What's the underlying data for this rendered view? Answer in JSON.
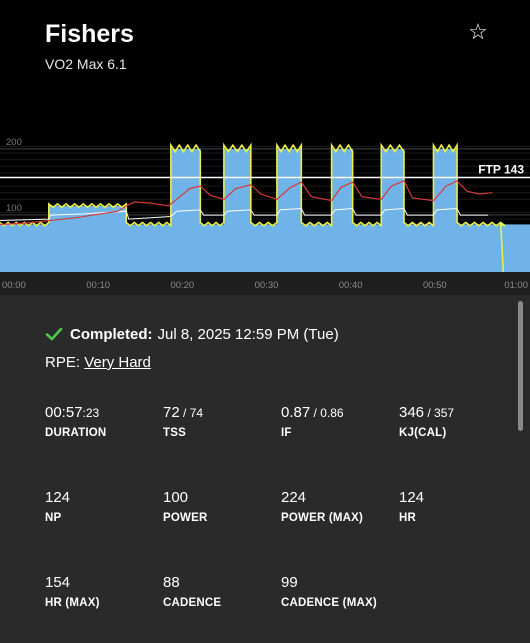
{
  "workout": {
    "title": "Fishers",
    "subtitle": "VO2 Max 6.1",
    "favorite_icon": "star-outline-icon"
  },
  "chart_data": {
    "type": "area",
    "y_ticks": [
      "200",
      "100"
    ],
    "x_ticks": [
      "00:00",
      "00:10",
      "00:20",
      "00:30",
      "00:40",
      "00:50",
      "01:00"
    ],
    "ftp_label": "FTP 143",
    "ftp_value": 143,
    "duration_minutes": 60,
    "ylim": [
      0,
      230
    ],
    "grid": true,
    "colors": {
      "target_power": "#6fb3e8",
      "actual_power": "#e8f04a",
      "heart_rate": "#d83a3a",
      "cadence": "#ffffff"
    },
    "target_power_segments": [
      {
        "start": 0,
        "end": 5.8,
        "watts": 72
      },
      {
        "start": 5.8,
        "end": 15,
        "watts": 100
      },
      {
        "start": 15,
        "end": 20.3,
        "watts": 72
      },
      {
        "start": 20.3,
        "end": 23.8,
        "watts": 186
      },
      {
        "start": 23.8,
        "end": 26.6,
        "watts": 72
      },
      {
        "start": 26.6,
        "end": 29.8,
        "watts": 186
      },
      {
        "start": 29.8,
        "end": 32.9,
        "watts": 72
      },
      {
        "start": 32.9,
        "end": 35.8,
        "watts": 186
      },
      {
        "start": 35.8,
        "end": 39.4,
        "watts": 72
      },
      {
        "start": 39.4,
        "end": 41.9,
        "watts": 186
      },
      {
        "start": 41.9,
        "end": 45.3,
        "watts": 72
      },
      {
        "start": 45.3,
        "end": 48.0,
        "watts": 186
      },
      {
        "start": 48.0,
        "end": 51.5,
        "watts": 72
      },
      {
        "start": 51.5,
        "end": 54.3,
        "watts": 186
      },
      {
        "start": 54.3,
        "end": 60,
        "watts": 72
      }
    ],
    "heart_rate_series": [
      [
        0,
        72
      ],
      [
        3,
        74
      ],
      [
        6,
        78
      ],
      [
        9,
        82
      ],
      [
        12,
        88
      ],
      [
        14,
        92
      ],
      [
        15,
        100
      ],
      [
        16,
        106
      ],
      [
        18,
        104
      ],
      [
        20,
        100
      ],
      [
        21,
        110
      ],
      [
        22.5,
        126
      ],
      [
        23.8,
        130
      ],
      [
        25,
        116
      ],
      [
        26.6,
        110
      ],
      [
        28,
        126
      ],
      [
        29.8,
        132
      ],
      [
        31,
        118
      ],
      [
        32.9,
        110
      ],
      [
        34.5,
        128
      ],
      [
        35.8,
        136
      ],
      [
        37,
        114
      ],
      [
        39.4,
        108
      ],
      [
        40.5,
        128
      ],
      [
        41.9,
        136
      ],
      [
        43,
        114
      ],
      [
        45.3,
        110
      ],
      [
        46.5,
        130
      ],
      [
        48,
        138
      ],
      [
        49,
        112
      ],
      [
        51.5,
        108
      ],
      [
        53,
        130
      ],
      [
        54.3,
        138
      ],
      [
        55.5,
        122
      ],
      [
        57,
        118
      ],
      [
        58.5,
        120
      ]
    ],
    "cadence_series": [
      [
        0,
        78
      ],
      [
        5.8,
        80
      ],
      [
        6,
        86
      ],
      [
        10,
        88
      ],
      [
        15,
        92
      ],
      [
        15.3,
        80
      ],
      [
        20.3,
        84
      ],
      [
        21,
        92
      ],
      [
        23.8,
        94
      ],
      [
        24.2,
        86
      ],
      [
        26.6,
        86
      ],
      [
        27,
        92
      ],
      [
        29.8,
        94
      ],
      [
        30.2,
        86
      ],
      [
        32.9,
        86
      ],
      [
        33.3,
        94
      ],
      [
        35.8,
        96
      ],
      [
        36.2,
        86
      ],
      [
        39.4,
        86
      ],
      [
        39.8,
        94
      ],
      [
        41.9,
        96
      ],
      [
        42.3,
        86
      ],
      [
        45.3,
        86
      ],
      [
        45.7,
        94
      ],
      [
        48,
        96
      ],
      [
        48.4,
        86
      ],
      [
        51.5,
        86
      ],
      [
        51.9,
        94
      ],
      [
        54.3,
        96
      ],
      [
        54.7,
        86
      ],
      [
        58,
        86
      ]
    ]
  },
  "summary": {
    "completed_label": "Completed:",
    "completed_date": "Jul 8, 2025 12:59 PM (Tue)",
    "rpe_label": "RPE:",
    "rpe_value": "Very Hard"
  },
  "stats": [
    {
      "id": "duration",
      "value": "00:57",
      "value_sec": ":23",
      "label": "DURATION"
    },
    {
      "id": "tss",
      "value": "72",
      "value_sec": " / 74",
      "label": "TSS"
    },
    {
      "id": "if",
      "value": "0.87",
      "value_sec": " / 0.86",
      "label": "IF"
    },
    {
      "id": "kj",
      "value": "346",
      "value_sec": " / 357",
      "label": "KJ(CAL)"
    },
    {
      "id": "np",
      "value": "124",
      "value_sec": "",
      "label": "NP"
    },
    {
      "id": "power",
      "value": "100",
      "value_sec": "",
      "label": "POWER"
    },
    {
      "id": "power-max",
      "value": "224",
      "value_sec": "",
      "label": "POWER (MAX)"
    },
    {
      "id": "hr",
      "value": "124",
      "value_sec": "",
      "label": "HR"
    },
    {
      "id": "hr-max",
      "value": "154",
      "value_sec": "",
      "label": "HR (MAX)"
    },
    {
      "id": "cadence",
      "value": "88",
      "value_sec": "",
      "label": "CADENCE"
    },
    {
      "id": "cadence-max",
      "value": "99",
      "value_sec": "",
      "label": "CADENCE (MAX)"
    }
  ]
}
